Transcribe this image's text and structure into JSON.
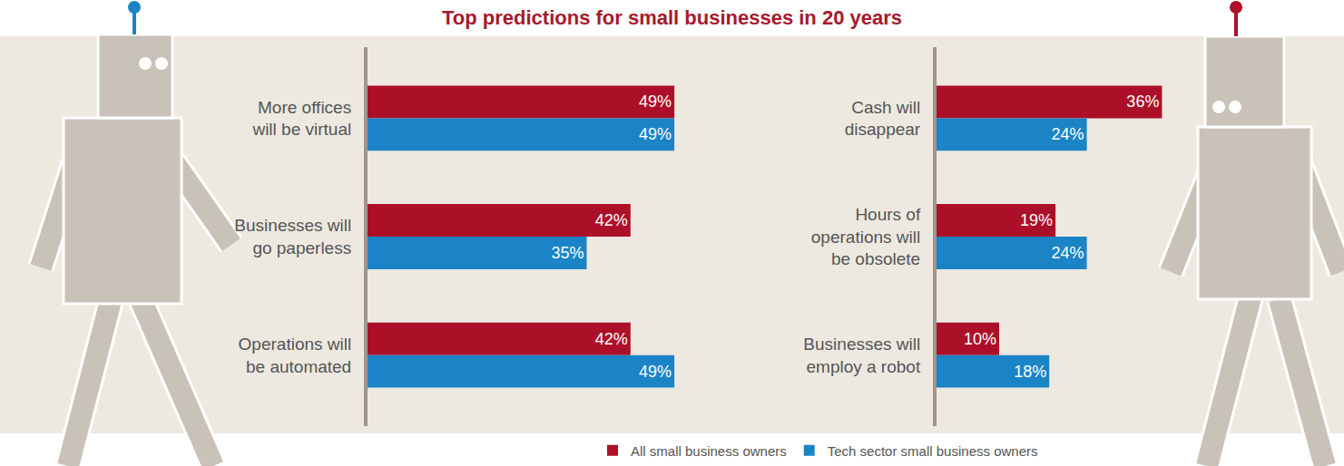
{
  "chart_data": {
    "type": "bar",
    "title": "Top predictions for small businesses in 20 years",
    "orientation": "horizontal",
    "categories": [
      "More offices will be virtual",
      "Businesses will go paperless",
      "Operations will be automated",
      "Cash will disappear",
      "Hours of operations will be obsolete",
      "Businesses will employ a robot"
    ],
    "series": [
      {
        "name": "All small business owners",
        "color": "#ac1029",
        "values": [
          49,
          42,
          42,
          36,
          19,
          10
        ],
        "value_labels": [
          "49%",
          "42%",
          "42%",
          "36%",
          "19%",
          "10%"
        ]
      },
      {
        "name": "Tech sector small business owners",
        "color": "#1b84c6",
        "values": [
          49,
          35,
          49,
          24,
          24,
          18
        ],
        "value_labels": [
          "49%",
          "35%",
          "49%",
          "24%",
          "24%",
          "18%"
        ]
      }
    ],
    "xlim": [
      0,
      50
    ],
    "data_labels": true,
    "tick_labels": "y",
    "grid": false,
    "legend": "bottom"
  }
}
